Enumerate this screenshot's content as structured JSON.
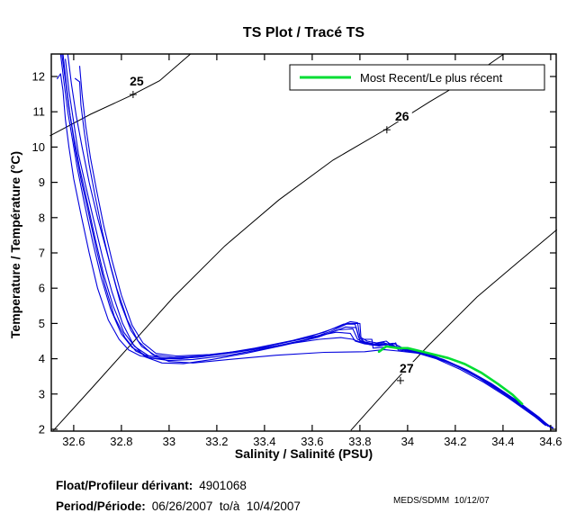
{
  "title": "TS Plot / Tracé TS",
  "legend": {
    "entries": [
      {
        "label": "Most Recent/Le plus récent",
        "color": "#00dd33"
      }
    ]
  },
  "footer": {
    "float_label": "Float/Profileur dérivant:",
    "float_value": "4901068",
    "period_label": "Period/Période:",
    "period_value": "06/26/2007  to/à  10/4/2007",
    "credit": "MEDS/SDMM  10/12/07"
  },
  "chart_data": {
    "type": "line",
    "title": "TS Plot / Tracé TS",
    "xlabel": "Salinity / Salinité (PSU)",
    "ylabel": "Temperature / Température (°C)",
    "xlim": [
      32.506,
      34.623
    ],
    "ylim": [
      1.949,
      12.638
    ],
    "grid": false,
    "legend_position": "top-right",
    "x_ticks": [
      32.6,
      32.8,
      33,
      33.2,
      33.4,
      33.6,
      33.8,
      34,
      34.2,
      34.4,
      34.6
    ],
    "x_tick_labels": [
      "32.6",
      "32.8",
      "33",
      "33.2",
      "33.4",
      "33.6",
      "33.8",
      "34",
      "34.2",
      "34.4",
      "34.6"
    ],
    "y_ticks": [
      2,
      3,
      4,
      5,
      6,
      7,
      8,
      9,
      10,
      11,
      12
    ],
    "y_tick_labels": [
      "2",
      "3",
      "4",
      "5",
      "6",
      "7",
      "8",
      "9",
      "10",
      "11",
      "12"
    ],
    "colors": {
      "profiles": "#0000dd",
      "most_recent": "#00dd33",
      "contours": "#000000"
    },
    "density_contours": [
      {
        "level": 25,
        "label": "25",
        "label_at": [
          32.864,
          11.87
        ],
        "marker_at": [
          32.849,
          11.49
        ],
        "points": [
          [
            32.5,
            10.32
          ],
          [
            32.67,
            10.93
          ],
          [
            32.84,
            11.46
          ],
          [
            32.96,
            11.88
          ],
          [
            33.09,
            12.64
          ]
        ]
      },
      {
        "level": 26,
        "label": "26",
        "label_at": [
          33.977,
          10.88
        ],
        "marker_at": [
          33.913,
          10.49
        ],
        "points": [
          [
            32.515,
            1.97
          ],
          [
            32.68,
            3.2
          ],
          [
            32.857,
            4.53
          ],
          [
            33.019,
            5.75
          ],
          [
            33.234,
            7.2
          ],
          [
            33.46,
            8.5
          ],
          [
            33.687,
            9.63
          ],
          [
            33.913,
            10.52
          ],
          [
            34.094,
            11.29
          ],
          [
            34.253,
            11.93
          ],
          [
            34.404,
            12.64
          ]
        ]
      },
      {
        "level": 27,
        "label": "27",
        "label_at": [
          33.996,
          3.73
        ],
        "marker_at": [
          33.97,
          3.38
        ],
        "points": [
          [
            33.762,
            1.97
          ],
          [
            33.958,
            3.45
          ],
          [
            34.091,
            4.4
          ],
          [
            34.291,
            5.75
          ],
          [
            34.46,
            6.72
          ],
          [
            34.626,
            7.66
          ]
        ]
      }
    ],
    "profiles": [
      [
        [
          32.53,
          11.93
        ],
        [
          32.545,
          12.08
        ],
        [
          32.555,
          11.6
        ],
        [
          32.565,
          10.8
        ],
        [
          32.58,
          10.0
        ],
        [
          32.6,
          9.1
        ],
        [
          32.63,
          8.1
        ],
        [
          32.665,
          7.0
        ],
        [
          32.7,
          6.0
        ],
        [
          32.745,
          5.1
        ],
        [
          32.79,
          4.55
        ],
        [
          32.83,
          4.25
        ],
        [
          32.88,
          4.08
        ],
        [
          32.95,
          4.0
        ],
        [
          33.05,
          4.0
        ],
        [
          33.18,
          4.1
        ],
        [
          33.33,
          4.25
        ],
        [
          33.48,
          4.45
        ],
        [
          33.6,
          4.65
        ],
        [
          33.7,
          4.88
        ],
        [
          33.76,
          5.05
        ],
        [
          33.79,
          5.02
        ],
        [
          33.8,
          4.62
        ],
        [
          33.83,
          4.5
        ],
        [
          33.87,
          4.45
        ],
        [
          33.91,
          4.5
        ],
        [
          33.94,
          4.35
        ],
        [
          33.99,
          4.3
        ],
        [
          34.05,
          4.2
        ],
        [
          34.12,
          4.05
        ],
        [
          34.22,
          3.75
        ],
        [
          34.32,
          3.38
        ],
        [
          34.42,
          2.95
        ],
        [
          34.52,
          2.45
        ],
        [
          34.6,
          2.05
        ]
      ],
      [
        [
          32.545,
          12.64
        ],
        [
          32.56,
          11.8
        ],
        [
          32.575,
          11.0
        ],
        [
          32.595,
          10.2
        ],
        [
          32.615,
          9.4
        ],
        [
          32.645,
          8.4
        ],
        [
          32.68,
          7.3
        ],
        [
          32.715,
          6.3
        ],
        [
          32.755,
          5.4
        ],
        [
          32.8,
          4.7
        ],
        [
          32.845,
          4.32
        ],
        [
          32.9,
          4.1
        ],
        [
          32.97,
          4.02
        ],
        [
          33.07,
          4.02
        ],
        [
          33.2,
          4.12
        ],
        [
          33.36,
          4.3
        ],
        [
          33.52,
          4.52
        ],
        [
          33.65,
          4.75
        ],
        [
          33.73,
          4.98
        ],
        [
          33.78,
          4.98
        ],
        [
          33.795,
          4.6
        ],
        [
          33.82,
          4.48
        ],
        [
          33.86,
          4.42
        ],
        [
          33.9,
          4.46
        ],
        [
          33.95,
          4.3
        ],
        [
          34.0,
          4.25
        ],
        [
          34.07,
          4.15
        ],
        [
          34.15,
          3.98
        ],
        [
          34.25,
          3.68
        ],
        [
          34.35,
          3.3
        ],
        [
          34.45,
          2.85
        ],
        [
          34.55,
          2.32
        ],
        [
          34.61,
          2.02
        ]
      ],
      [
        [
          32.555,
          12.64
        ],
        [
          32.57,
          11.7
        ],
        [
          32.585,
          10.9
        ],
        [
          32.605,
          10.0
        ],
        [
          32.63,
          9.1
        ],
        [
          32.66,
          8.2
        ],
        [
          32.695,
          7.1
        ],
        [
          32.73,
          6.1
        ],
        [
          32.77,
          5.2
        ],
        [
          32.815,
          4.6
        ],
        [
          32.86,
          4.22
        ],
        [
          32.92,
          4.02
        ],
        [
          33.0,
          3.95
        ],
        [
          33.1,
          3.98
        ],
        [
          33.25,
          4.1
        ],
        [
          33.4,
          4.28
        ],
        [
          33.55,
          4.5
        ],
        [
          33.67,
          4.72
        ],
        [
          33.74,
          4.9
        ],
        [
          33.785,
          4.88
        ],
        [
          33.8,
          4.5
        ],
        [
          33.84,
          4.4
        ],
        [
          33.88,
          4.36
        ],
        [
          33.93,
          4.42
        ],
        [
          33.97,
          4.27
        ],
        [
          34.03,
          4.2
        ],
        [
          34.1,
          4.08
        ],
        [
          34.18,
          3.88
        ],
        [
          34.28,
          3.55
        ],
        [
          34.38,
          3.15
        ],
        [
          34.48,
          2.68
        ],
        [
          34.57,
          2.15
        ],
        [
          34.61,
          2.05
        ]
      ],
      [
        [
          32.565,
          12.5
        ],
        [
          32.58,
          11.6
        ],
        [
          32.6,
          10.7
        ],
        [
          32.62,
          9.8
        ],
        [
          32.65,
          8.9
        ],
        [
          32.685,
          7.9
        ],
        [
          32.72,
          6.9
        ],
        [
          32.76,
          5.9
        ],
        [
          32.805,
          5.0
        ],
        [
          32.85,
          4.4
        ],
        [
          32.9,
          4.05
        ],
        [
          32.97,
          3.88
        ],
        [
          33.06,
          3.86
        ],
        [
          33.18,
          3.98
        ],
        [
          33.32,
          4.15
        ],
        [
          33.48,
          4.38
        ],
        [
          33.62,
          4.6
        ],
        [
          33.71,
          4.82
        ],
        [
          33.77,
          4.85
        ],
        [
          33.79,
          4.55
        ],
        [
          33.83,
          4.44
        ],
        [
          33.89,
          4.4
        ],
        [
          33.94,
          4.44
        ],
        [
          33.98,
          4.3
        ],
        [
          34.04,
          4.22
        ],
        [
          34.11,
          4.08
        ],
        [
          34.2,
          3.82
        ],
        [
          34.3,
          3.45
        ],
        [
          34.4,
          3.02
        ],
        [
          34.5,
          2.55
        ],
        [
          34.59,
          2.08
        ]
      ],
      [
        [
          32.605,
          11.95
        ],
        [
          32.625,
          11.85
        ],
        [
          32.63,
          11.2
        ],
        [
          32.645,
          10.4
        ],
        [
          32.665,
          9.5
        ],
        [
          32.69,
          8.6
        ],
        [
          32.72,
          7.6
        ],
        [
          32.755,
          6.6
        ],
        [
          32.795,
          5.6
        ],
        [
          32.84,
          4.8
        ],
        [
          32.885,
          4.35
        ],
        [
          32.94,
          4.1
        ],
        [
          33.02,
          4.04
        ],
        [
          33.14,
          4.08
        ],
        [
          33.3,
          4.22
        ],
        [
          33.46,
          4.42
        ],
        [
          33.6,
          4.62
        ],
        [
          33.7,
          4.75
        ],
        [
          33.76,
          4.72
        ],
        [
          33.78,
          4.5
        ],
        [
          33.82,
          4.42
        ],
        [
          33.87,
          4.38
        ],
        [
          33.92,
          4.4
        ],
        [
          33.97,
          4.28
        ],
        [
          34.03,
          4.18
        ],
        [
          34.1,
          4.05
        ],
        [
          34.19,
          3.85
        ],
        [
          34.29,
          3.5
        ],
        [
          34.39,
          3.08
        ],
        [
          34.49,
          2.6
        ],
        [
          34.58,
          2.1
        ]
      ],
      [
        [
          32.625,
          12.3
        ],
        [
          32.635,
          11.5
        ],
        [
          32.65,
          10.6
        ],
        [
          32.67,
          9.7
        ],
        [
          32.695,
          8.8
        ],
        [
          32.725,
          7.8
        ],
        [
          32.76,
          6.8
        ],
        [
          32.8,
          5.8
        ],
        [
          32.845,
          4.95
        ],
        [
          32.89,
          4.45
        ],
        [
          32.945,
          4.15
        ],
        [
          33.03,
          4.08
        ],
        [
          33.17,
          4.12
        ],
        [
          33.34,
          4.25
        ],
        [
          33.5,
          4.42
        ],
        [
          33.63,
          4.55
        ],
        [
          33.72,
          4.6
        ],
        [
          33.77,
          4.55
        ],
        [
          33.81,
          4.45
        ],
        [
          33.86,
          4.4
        ],
        [
          33.91,
          4.43
        ],
        [
          33.96,
          4.3
        ],
        [
          34.02,
          4.22
        ],
        [
          34.09,
          4.1
        ],
        [
          34.17,
          3.92
        ],
        [
          34.27,
          3.58
        ],
        [
          34.37,
          3.2
        ],
        [
          34.47,
          2.75
        ],
        [
          34.56,
          2.25
        ],
        [
          34.61,
          2.03
        ]
      ],
      [
        [
          32.575,
          12.64
        ],
        [
          32.59,
          11.8
        ],
        [
          32.61,
          10.9
        ],
        [
          32.635,
          10.0
        ],
        [
          32.665,
          9.0
        ],
        [
          32.7,
          8.0
        ],
        [
          32.74,
          7.0
        ],
        [
          32.78,
          6.0
        ],
        [
          32.825,
          5.1
        ],
        [
          32.87,
          4.5
        ],
        [
          32.93,
          4.12
        ],
        [
          33.0,
          3.92
        ],
        [
          33.1,
          3.88
        ],
        [
          33.25,
          3.98
        ],
        [
          33.45,
          4.1
        ],
        [
          33.65,
          4.18
        ],
        [
          33.82,
          4.2
        ],
        [
          33.9,
          4.26
        ],
        [
          33.96,
          4.22
        ],
        [
          34.05,
          4.15
        ],
        [
          34.15,
          3.95
        ],
        [
          34.25,
          3.65
        ],
        [
          34.35,
          3.28
        ],
        [
          34.45,
          2.85
        ],
        [
          34.55,
          2.35
        ],
        [
          34.6,
          2.05
        ]
      ],
      [
        [
          32.55,
          12.64
        ],
        [
          32.565,
          11.9
        ],
        [
          32.58,
          11.1
        ],
        [
          32.6,
          10.3
        ],
        [
          32.625,
          9.4
        ],
        [
          32.655,
          8.5
        ],
        [
          32.69,
          7.4
        ],
        [
          32.725,
          6.4
        ],
        [
          32.765,
          5.5
        ],
        [
          32.81,
          4.75
        ],
        [
          32.855,
          4.35
        ],
        [
          32.915,
          4.08
        ],
        [
          33.0,
          4.0
        ],
        [
          33.12,
          4.04
        ],
        [
          33.28,
          4.18
        ],
        [
          33.44,
          4.35
        ],
        [
          33.58,
          4.55
        ],
        [
          33.68,
          4.78
        ],
        [
          33.75,
          5.0
        ],
        [
          33.8,
          5.0
        ],
        [
          33.805,
          4.55
        ],
        [
          33.85,
          4.55
        ],
        [
          33.855,
          4.3
        ],
        [
          33.91,
          4.33
        ],
        [
          33.95,
          4.45
        ],
        [
          33.96,
          4.25
        ],
        [
          34.03,
          4.18
        ],
        [
          34.12,
          4.0
        ],
        [
          34.22,
          3.7
        ],
        [
          34.32,
          3.33
        ],
        [
          34.42,
          2.9
        ],
        [
          34.52,
          2.42
        ],
        [
          34.6,
          2.05
        ]
      ]
    ],
    "most_recent": [
      [
        33.88,
        4.2
      ],
      [
        33.91,
        4.35
      ],
      [
        33.96,
        4.3
      ],
      [
        34.0,
        4.3
      ],
      [
        34.05,
        4.22
      ],
      [
        34.11,
        4.12
      ],
      [
        34.17,
        4.02
      ],
      [
        34.24,
        3.85
      ],
      [
        34.31,
        3.6
      ],
      [
        34.38,
        3.28
      ],
      [
        34.44,
        2.98
      ],
      [
        34.48,
        2.72
      ]
    ]
  }
}
